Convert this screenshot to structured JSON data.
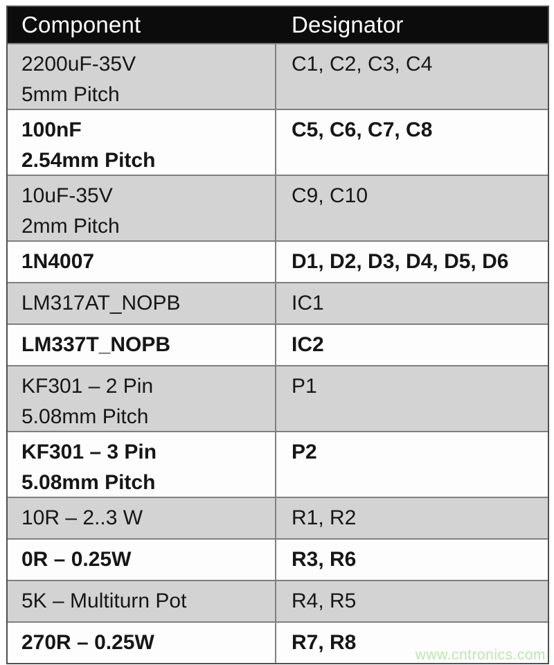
{
  "table": {
    "columns": [
      {
        "label": "Component"
      },
      {
        "label": "Designator"
      }
    ],
    "rows": [
      {
        "component": "2200uF-35V\n5mm Pitch",
        "designator": "C1, C2, C3, C4"
      },
      {
        "component": "100nF\n2.54mm Pitch",
        "designator": "C5, C6, C7, C8"
      },
      {
        "component": "10uF-35V\n2mm Pitch",
        "designator": "C9, C10"
      },
      {
        "component": "1N4007",
        "designator": "D1, D2, D3, D4, D5, D6"
      },
      {
        "component": "LM317AT_NOPB",
        "designator": "IC1"
      },
      {
        "component": "LM337T_NOPB",
        "designator": "IC2"
      },
      {
        "component": "KF301 – 2 Pin\n5.08mm Pitch",
        "designator": "P1"
      },
      {
        "component": "KF301 – 3 Pin\n5.08mm Pitch",
        "designator": "P2"
      },
      {
        "component": "10R – 2..3 W",
        "designator": "R1, R2"
      },
      {
        "component": "0R – 0.25W",
        "designator": "R3, R6"
      },
      {
        "component": "5K – Multiturn Pot",
        "designator": "R4, R5"
      },
      {
        "component": "270R – 0.25W",
        "designator": "R7, R8"
      }
    ]
  },
  "watermark": {
    "text": "www.cntronics.com",
    "color": "#bce7ae"
  },
  "colors": {
    "header_bg": "#0c0c0c",
    "header_text": "#ffffff",
    "row_gray": "#d3d3d3",
    "row_white": "#fdfdfd",
    "inner_border": "#7f7f7f",
    "outer_border": "#4f4f4f",
    "text": "#161616"
  }
}
